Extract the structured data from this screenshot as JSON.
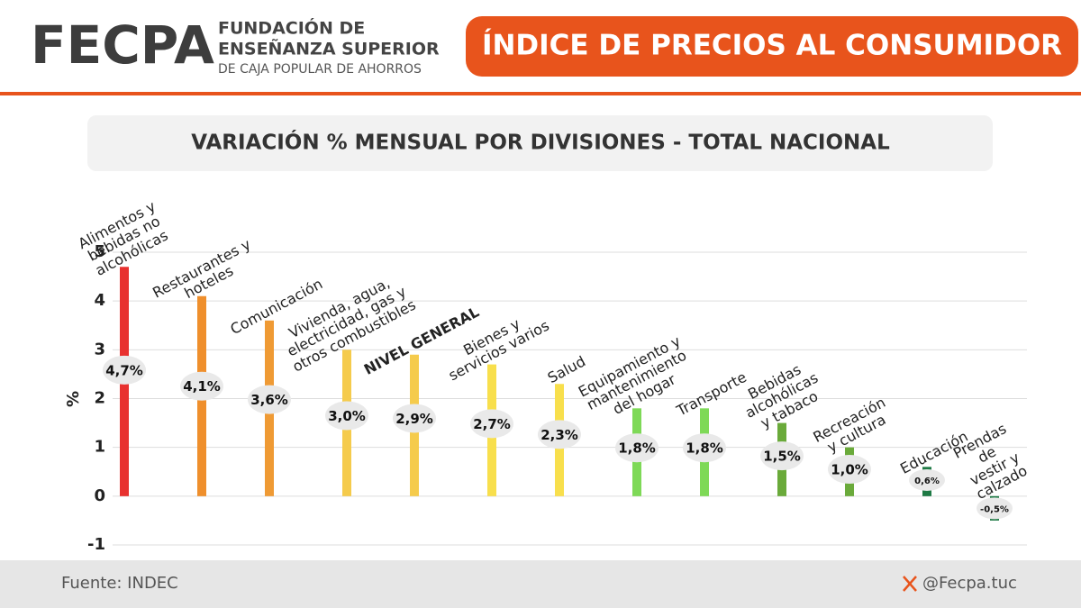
{
  "header": {
    "logo": "FECPA",
    "org_line1": "FUNDACIÓN DE",
    "org_line2": "ENSEÑANZA SUPERIOR",
    "org_line3": "DE CAJA POPULAR DE AHORROS",
    "banner": "ÍNDICE DE PRECIOS AL CONSUMIDOR"
  },
  "chart_data": {
    "type": "bar",
    "title": "VARIACIÓN % MENSUAL POR DIVISIONES - TOTAL NACIONAL",
    "ylabel": "%",
    "categories": [
      "Alimentos y\nbebidas no\nalcohólicas",
      "Restaurantes y\nhoteles",
      "Comunicación",
      "Vivienda, agua,\nelectricidad, gas y\notros combustibles",
      "NIVEL GENERAL",
      "Bienes y\nservicios varios",
      "Salud",
      "Equipamiento y\nmantenimiento\ndel hogar",
      "Transporte",
      "Bebidas\nalcohólicas\ny tabaco",
      "Recreación\ny cultura",
      "Educación",
      "Prendas de\nvestir y calzado"
    ],
    "values": [
      4.7,
      4.1,
      3.6,
      3.0,
      2.9,
      2.7,
      2.3,
      1.8,
      1.8,
      1.5,
      1.0,
      0.6,
      -0.5
    ],
    "value_labels": [
      "4,7%",
      "4,1%",
      "3,6%",
      "3,0%",
      "2,9%",
      "2,7%",
      "2,3%",
      "1,8%",
      "1,8%",
      "1,5%",
      "1,0%",
      "0,6%",
      "-0,5%"
    ],
    "colors": [
      "#e8312f",
      "#ef8f2c",
      "#ef9a34",
      "#f5cb4c",
      "#f5cb4c",
      "#f8df4c",
      "#f8df4c",
      "#7ed957",
      "#7ed957",
      "#6aaa3a",
      "#6aaa3a",
      "#1e7a45",
      "#1e7a45"
    ],
    "ylim": [
      -1,
      5
    ],
    "yticks": [
      -1,
      0,
      1,
      2,
      3,
      4,
      5
    ],
    "grid": true
  },
  "footer": {
    "source": "Fuente: INDEC",
    "handle": "@Fecpa.tuc"
  }
}
